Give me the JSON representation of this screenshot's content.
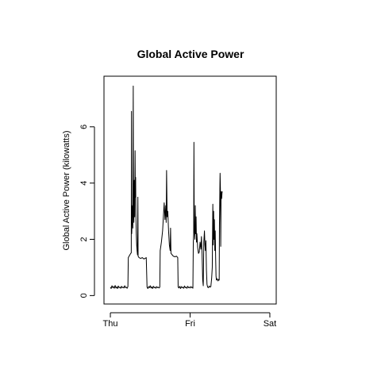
{
  "chart_data": {
    "type": "line",
    "title": "Global Active Power",
    "xlabel": "",
    "ylabel": "Global Active Power (kilowatts)",
    "x_ticks": [
      {
        "label": "Thu",
        "value": 0
      },
      {
        "label": "Fri",
        "value": 1
      },
      {
        "label": "Sat",
        "value": 2
      }
    ],
    "y_ticks": [
      0,
      2,
      4,
      6
    ],
    "xlim": [
      -0.08,
      2.08
    ],
    "ylim": [
      -0.3,
      7.8
    ],
    "grid": false,
    "legend": "none",
    "series": [
      {
        "color": "#000000",
        "points": [
          [
            0.0,
            0.3
          ],
          [
            0.01,
            0.25
          ],
          [
            0.02,
            0.35
          ],
          [
            0.03,
            0.28
          ],
          [
            0.04,
            0.32
          ],
          [
            0.05,
            0.26
          ],
          [
            0.06,
            0.36
          ],
          [
            0.07,
            0.27
          ],
          [
            0.08,
            0.31
          ],
          [
            0.09,
            0.25
          ],
          [
            0.1,
            0.34
          ],
          [
            0.11,
            0.28
          ],
          [
            0.12,
            0.3
          ],
          [
            0.13,
            0.26
          ],
          [
            0.14,
            0.33
          ],
          [
            0.15,
            0.28
          ],
          [
            0.16,
            0.3
          ],
          [
            0.17,
            0.27
          ],
          [
            0.18,
            0.35
          ],
          [
            0.19,
            0.28
          ],
          [
            0.2,
            0.3
          ],
          [
            0.21,
            0.26
          ],
          [
            0.22,
            0.32
          ],
          [
            0.225,
            1.35
          ],
          [
            0.235,
            1.4
          ],
          [
            0.245,
            1.45
          ],
          [
            0.255,
            1.5
          ],
          [
            0.262,
            1.52
          ],
          [
            0.265,
            6.55
          ],
          [
            0.268,
            2.2
          ],
          [
            0.272,
            2.6
          ],
          [
            0.278,
            3.2
          ],
          [
            0.282,
            2.4
          ],
          [
            0.287,
            7.45
          ],
          [
            0.29,
            3.0
          ],
          [
            0.295,
            2.6
          ],
          [
            0.3,
            4.1
          ],
          [
            0.305,
            2.8
          ],
          [
            0.31,
            5.15
          ],
          [
            0.313,
            3.5
          ],
          [
            0.317,
            4.2
          ],
          [
            0.32,
            2.9
          ],
          [
            0.325,
            2.2
          ],
          [
            0.33,
            1.8
          ],
          [
            0.335,
            1.6
          ],
          [
            0.34,
            1.45
          ],
          [
            0.345,
            3.5
          ],
          [
            0.348,
            1.4
          ],
          [
            0.36,
            1.35
          ],
          [
            0.38,
            1.32
          ],
          [
            0.4,
            1.35
          ],
          [
            0.42,
            1.3
          ],
          [
            0.44,
            1.33
          ],
          [
            0.45,
            1.35
          ],
          [
            0.46,
            0.3
          ],
          [
            0.47,
            0.25
          ],
          [
            0.48,
            0.32
          ],
          [
            0.49,
            0.28
          ],
          [
            0.5,
            0.35
          ],
          [
            0.51,
            0.27
          ],
          [
            0.52,
            0.31
          ],
          [
            0.53,
            0.25
          ],
          [
            0.54,
            0.33
          ],
          [
            0.55,
            0.28
          ],
          [
            0.56,
            0.3
          ],
          [
            0.57,
            0.26
          ],
          [
            0.58,
            0.32
          ],
          [
            0.59,
            0.28
          ],
          [
            0.6,
            0.3
          ],
          [
            0.61,
            0.27
          ],
          [
            0.62,
            0.3
          ],
          [
            0.625,
            1.6
          ],
          [
            0.64,
            1.9
          ],
          [
            0.655,
            2.3
          ],
          [
            0.665,
            2.8
          ],
          [
            0.675,
            3.3
          ],
          [
            0.685,
            2.7
          ],
          [
            0.695,
            3.2
          ],
          [
            0.7,
            2.6
          ],
          [
            0.705,
            4.45
          ],
          [
            0.712,
            2.8
          ],
          [
            0.72,
            3.0
          ],
          [
            0.73,
            2.3
          ],
          [
            0.74,
            1.8
          ],
          [
            0.75,
            1.6
          ],
          [
            0.755,
            2.4
          ],
          [
            0.76,
            1.5
          ],
          [
            0.775,
            1.45
          ],
          [
            0.79,
            1.4
          ],
          [
            0.81,
            1.38
          ],
          [
            0.83,
            1.4
          ],
          [
            0.845,
            1.35
          ],
          [
            0.85,
            0.3
          ],
          [
            0.86,
            0.27
          ],
          [
            0.87,
            0.33
          ],
          [
            0.88,
            0.25
          ],
          [
            0.89,
            0.32
          ],
          [
            0.9,
            0.28
          ],
          [
            0.91,
            0.3
          ],
          [
            0.92,
            0.26
          ],
          [
            0.93,
            0.34
          ],
          [
            0.94,
            0.28
          ],
          [
            0.95,
            0.3
          ],
          [
            0.96,
            0.26
          ],
          [
            0.97,
            0.33
          ],
          [
            0.98,
            0.28
          ],
          [
            0.99,
            0.3
          ],
          [
            1.0,
            0.27
          ],
          [
            1.01,
            0.32
          ],
          [
            1.02,
            0.28
          ],
          [
            1.03,
            0.3
          ],
          [
            1.035,
            0.26
          ],
          [
            1.04,
            1.9
          ],
          [
            1.045,
            2.2
          ],
          [
            1.048,
            5.45
          ],
          [
            1.052,
            2.4
          ],
          [
            1.06,
            2.0
          ],
          [
            1.065,
            3.2
          ],
          [
            1.07,
            2.2
          ],
          [
            1.075,
            2.8
          ],
          [
            1.08,
            1.9
          ],
          [
            1.085,
            2.2
          ],
          [
            1.095,
            1.7
          ],
          [
            1.105,
            1.5
          ],
          [
            1.115,
            1.55
          ],
          [
            1.125,
            1.9
          ],
          [
            1.135,
            1.65
          ],
          [
            1.142,
            2.1
          ],
          [
            1.15,
            1.5
          ],
          [
            1.158,
            0.55
          ],
          [
            1.165,
            0.35
          ],
          [
            1.172,
            1.9
          ],
          [
            1.18,
            2.3
          ],
          [
            1.186,
            1.8
          ],
          [
            1.192,
            1.6
          ],
          [
            1.198,
            1.95
          ],
          [
            1.205,
            0.9
          ],
          [
            1.212,
            0.4
          ],
          [
            1.22,
            0.3
          ],
          [
            1.23,
            0.28
          ],
          [
            1.24,
            0.34
          ],
          [
            1.25,
            0.3
          ],
          [
            1.26,
            0.32
          ],
          [
            1.27,
            0.6
          ],
          [
            1.278,
            1.0
          ],
          [
            1.285,
            3.25
          ],
          [
            1.29,
            1.8
          ],
          [
            1.295,
            3.0
          ],
          [
            1.3,
            2.0
          ],
          [
            1.305,
            2.7
          ],
          [
            1.31,
            1.6
          ],
          [
            1.315,
            2.3
          ],
          [
            1.32,
            1.4
          ],
          [
            1.325,
            0.7
          ],
          [
            1.33,
            0.55
          ],
          [
            1.34,
            0.6
          ],
          [
            1.35,
            0.52
          ],
          [
            1.36,
            0.58
          ],
          [
            1.365,
            0.55
          ],
          [
            1.368,
            2.5
          ],
          [
            1.372,
            3.5
          ],
          [
            1.376,
            4.35
          ],
          [
            1.38,
            3.8
          ],
          [
            1.384,
            1.75
          ],
          [
            1.388,
            3.5
          ],
          [
            1.392,
            3.7
          ],
          [
            1.396,
            3.45
          ],
          [
            1.4,
            3.65
          ],
          [
            1.404,
            3.7
          ]
        ]
      }
    ]
  }
}
